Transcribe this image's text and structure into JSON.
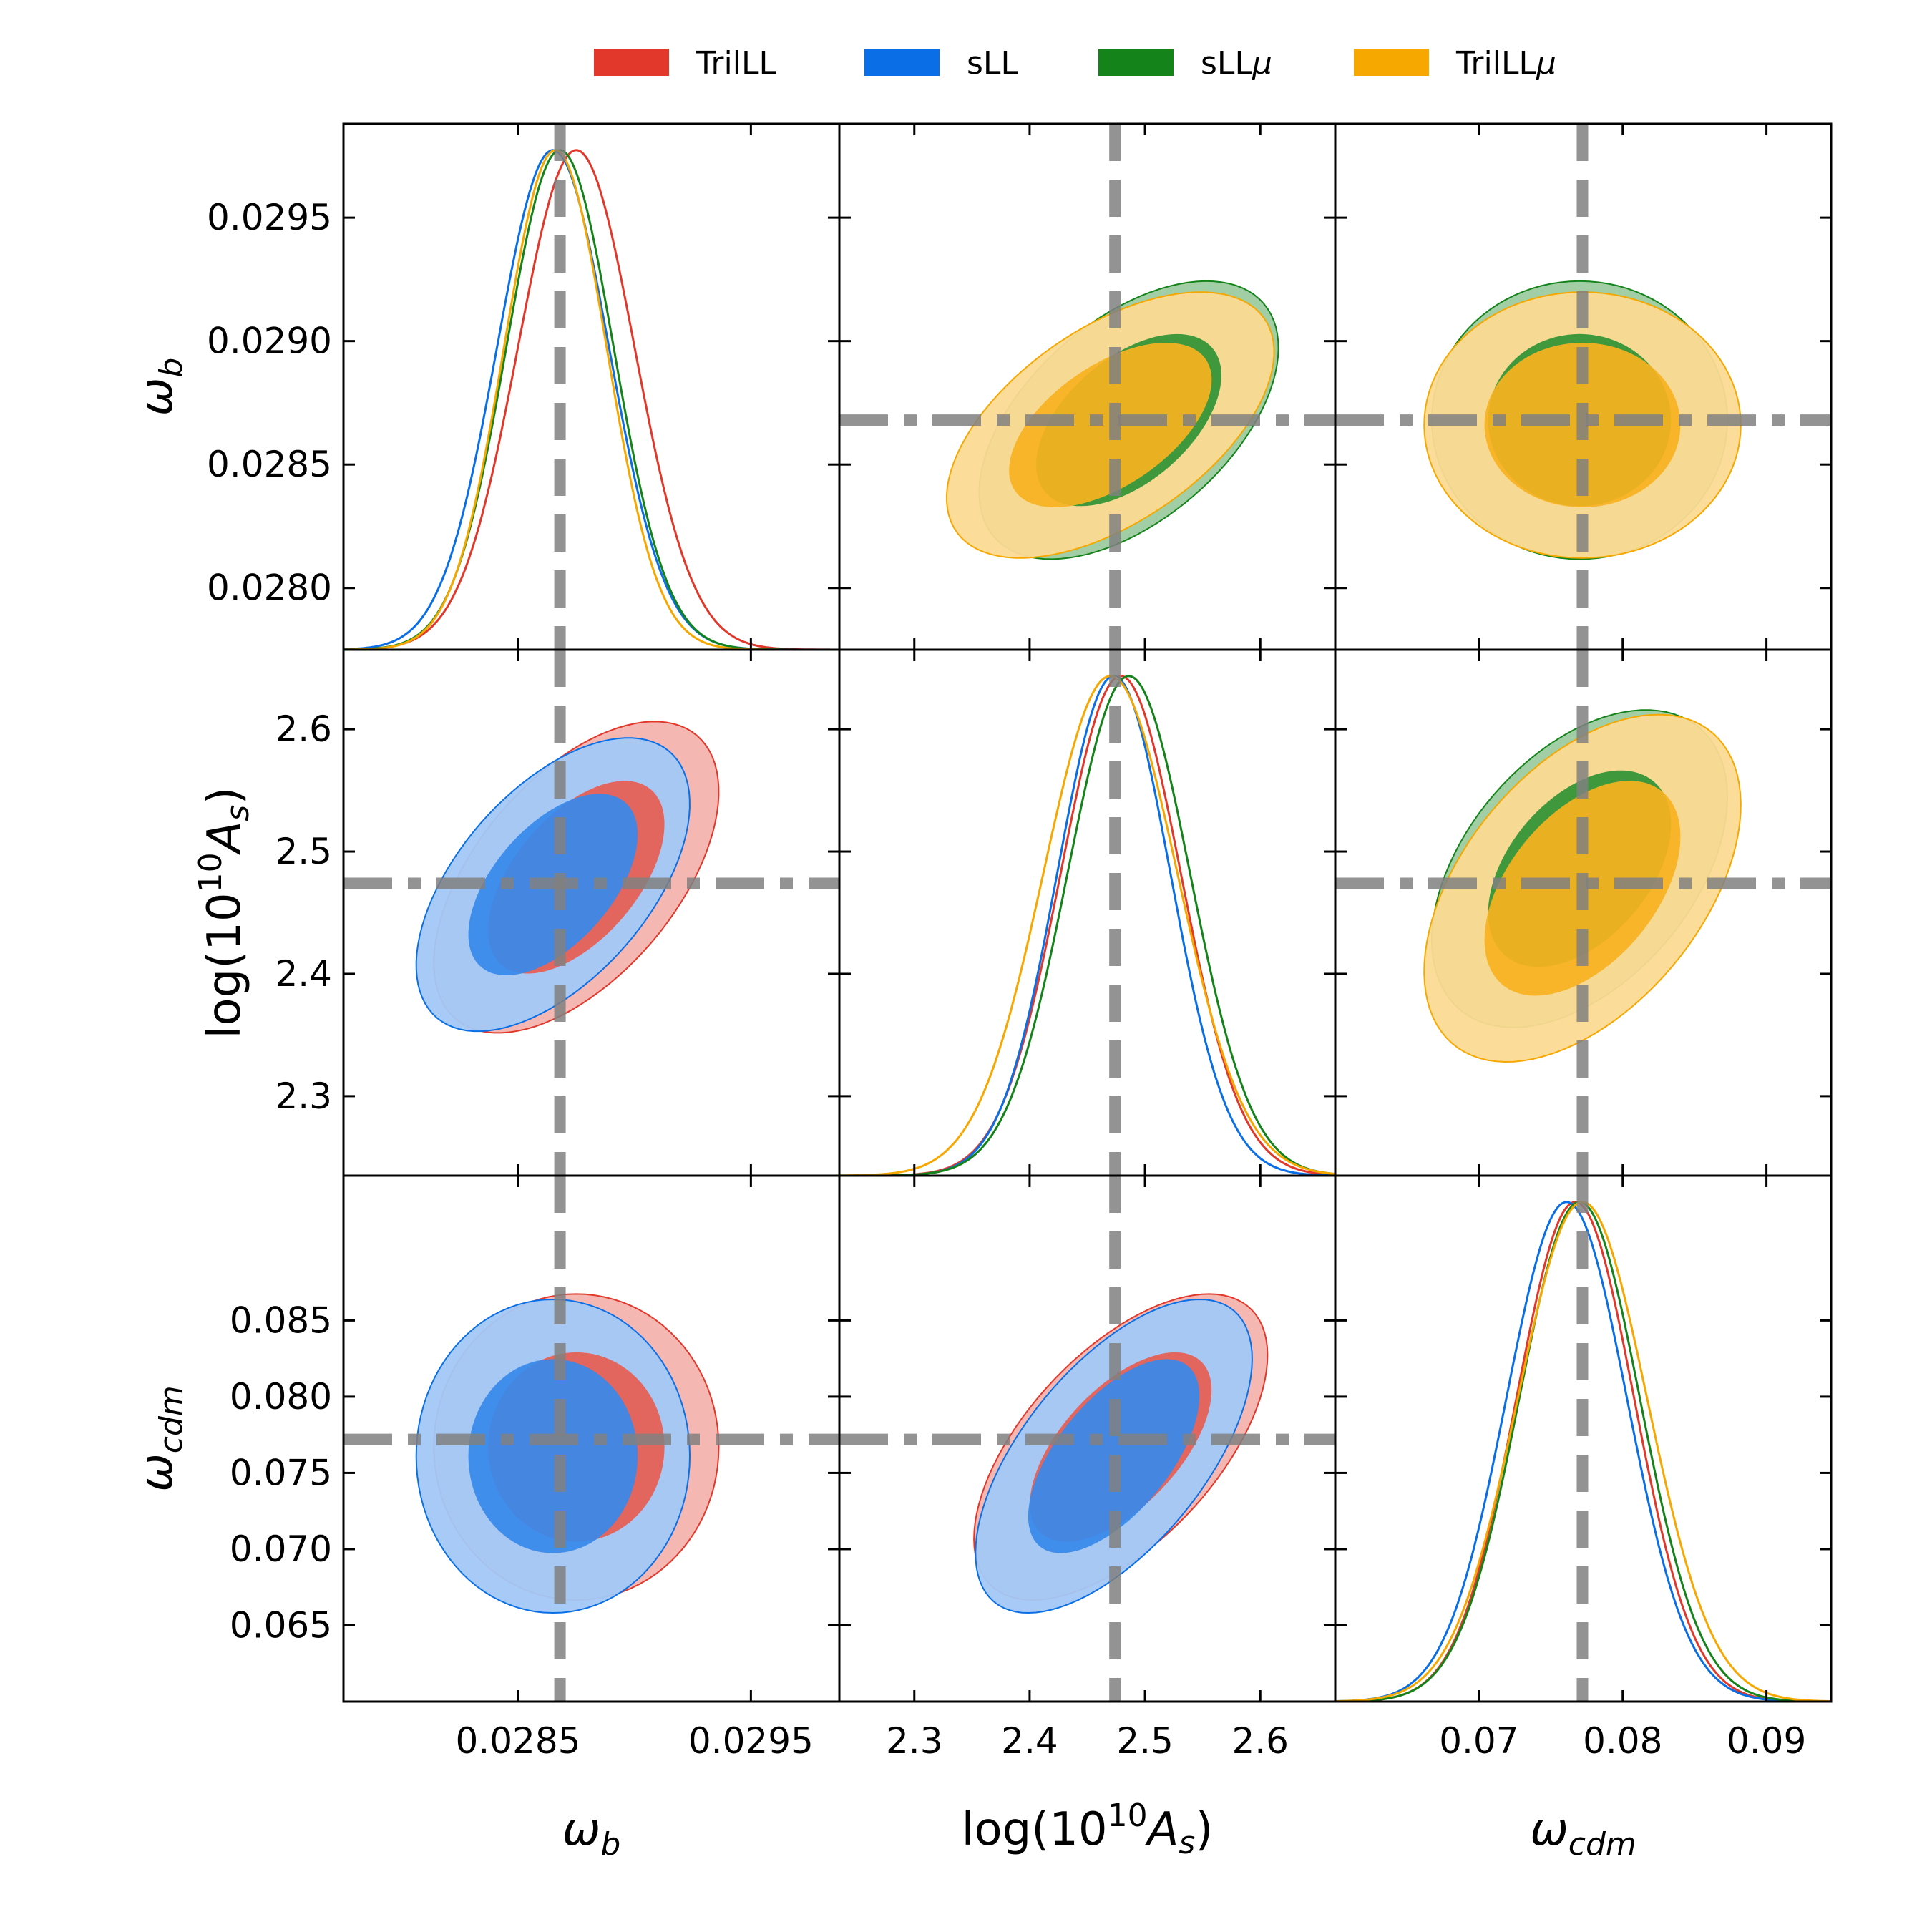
{
  "chart_data": {
    "type": "corner",
    "parameters": [
      {
        "key": "wb",
        "label": "ω_b",
        "label_base": "ω",
        "label_sub": "b",
        "range": [
          0.02775,
          0.02988
        ],
        "ticks": [
          0.0285,
          0.0295
        ],
        "tick_labels": [
          "0.0285",
          "0.0295"
        ],
        "row_ticks": [
          0.028,
          0.0285,
          0.029,
          0.0295
        ],
        "row_tick_labels": [
          "0.0280",
          "0.0285",
          "0.0290",
          "0.0295"
        ],
        "fiducial": 0.02868
      },
      {
        "key": "lnAs",
        "label": "log(10^10 A_s)",
        "label_prefix": "log(10",
        "label_sup": "10",
        "label_base": "A",
        "label_sub": "s",
        "label_suffix": ")",
        "range": [
          2.235,
          2.665
        ],
        "ticks": [
          2.3,
          2.4,
          2.5,
          2.6
        ],
        "tick_labels": [
          "2.3",
          "2.4",
          "2.5",
          "2.6"
        ],
        "row_ticks": [
          2.3,
          2.4,
          2.5,
          2.6
        ],
        "row_tick_labels": [
          "2.3",
          "2.4",
          "2.5",
          "2.6"
        ],
        "fiducial": 2.474
      },
      {
        "key": "wcdm",
        "label": "ω_cdm",
        "label_base": "ω",
        "label_sub": "cdm",
        "range": [
          0.06,
          0.0945
        ],
        "ticks": [
          0.07,
          0.08,
          0.09
        ],
        "tick_labels": [
          "0.07",
          "0.08",
          "0.09"
        ],
        "row_ticks": [
          0.065,
          0.07,
          0.075,
          0.08,
          0.085
        ],
        "row_tick_labels": [
          "0.065",
          "0.070",
          "0.075",
          "0.080",
          "0.085"
        ],
        "fiducial": 0.0772
      }
    ],
    "series": [
      {
        "name": "TrilLL",
        "legend": "TrilLL",
        "legend_mu": false,
        "color": "#e2382b",
        "mean": {
          "wb": 0.02875,
          "lnAs": 2.479,
          "wcdm": 0.0767
        },
        "sd": {
          "wb": 0.00025,
          "lnAs": 0.052,
          "wcdm": 0.0041
        },
        "corr": {
          "wb_lnAs": 0.55,
          "wb_wcdm": 0.0,
          "lnAs_wcdm": 0.6
        }
      },
      {
        "name": "sLL",
        "legend": "sLL",
        "legend_mu": false,
        "color": "#0a6fe6",
        "mean": {
          "wb": 0.02865,
          "lnAs": 2.473,
          "wcdm": 0.0761
        },
        "sd": {
          "wb": 0.00024,
          "lnAs": 0.049,
          "wcdm": 0.0042
        },
        "corr": {
          "wb_lnAs": 0.55,
          "wb_wcdm": 0.0,
          "lnAs_wcdm": 0.62
        }
      },
      {
        "name": "sLLmu",
        "legend": "sLL",
        "legend_mu": true,
        "color": "#14841a",
        "mean": {
          "wb": 0.02868,
          "lnAs": 2.486,
          "wcdm": 0.077
        },
        "sd": {
          "wb": 0.00023,
          "lnAs": 0.053,
          "wcdm": 0.0042
        },
        "corr": {
          "wb_lnAs": 0.52,
          "wb_wcdm": 0.0,
          "lnAs_wcdm": 0.45
        }
      },
      {
        "name": "TrilLLmu",
        "legend": "TrilLL",
        "legend_mu": true,
        "color": "#f6a800",
        "mean": {
          "wb": 0.02866,
          "lnAs": 2.47,
          "wcdm": 0.0772
        },
        "sd": {
          "wb": 0.00022,
          "lnAs": 0.058,
          "wcdm": 0.0045
        },
        "corr": {
          "wb_lnAs": 0.55,
          "wb_wcdm": 0.0,
          "lnAs_wcdm": 0.48
        }
      }
    ],
    "lower_triangle_series": [
      "TrilLL",
      "sLL"
    ],
    "upper_triangle_series": [
      "sLLmu",
      "TrilLLmu"
    ],
    "contour_levels": [
      "68%",
      "95%"
    ],
    "fiducial_line_color": "#808080"
  }
}
